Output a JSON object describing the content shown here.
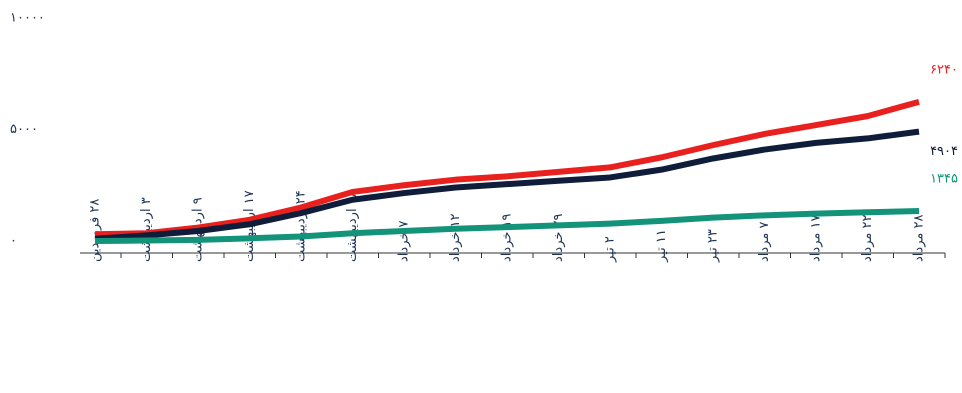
{
  "chart_data": {
    "type": "line",
    "categories": [
      "۲۸ فروردین",
      "۳ اردیبهشت",
      "۹ اردیبهشت",
      "۱۷ اردیبهشت",
      "۲۴ اردیبهشت",
      "۲۸ اردیبهشت",
      "۷ خرداد",
      "۱۲ خرداد",
      "۱۹ خرداد",
      "۲۹ خرداد",
      "۲ تیر",
      "۱۱ تیر",
      "۲۳ تیر",
      "۷ مرداد",
      "۱۷ مرداد",
      "۲۲ مرداد",
      "۲۸ مرداد"
    ],
    "series": [
      {
        "color": "#e8211f",
        "values": [
          300,
          350,
          600,
          950,
          1500,
          2200,
          2500,
          2750,
          2900,
          3100,
          3300,
          3750,
          4300,
          4800,
          5200,
          5600,
          6240
        ],
        "value_labels": [
          null,
          null,
          null,
          null,
          null,
          null,
          null,
          null,
          null,
          null,
          null,
          null,
          null,
          null,
          null,
          null,
          "۶۲۴۰"
        ]
      },
      {
        "color": "#0f1d3a",
        "values": [
          100,
          250,
          450,
          750,
          1250,
          1850,
          2150,
          2400,
          2550,
          2700,
          2850,
          3200,
          3700,
          4100,
          4400,
          4600,
          4904
        ],
        "value_labels": [
          null,
          null,
          null,
          null,
          null,
          null,
          null,
          null,
          null,
          null,
          null,
          null,
          null,
          null,
          null,
          null,
          "۴۹۰۴"
        ]
      },
      {
        "color": "#13947a",
        "values": [
          0,
          20,
          50,
          120,
          200,
          350,
          450,
          550,
          620,
          700,
          780,
          900,
          1050,
          1150,
          1230,
          1290,
          1345
        ],
        "value_labels": [
          null,
          null,
          null,
          null,
          null,
          null,
          null,
          null,
          null,
          null,
          null,
          null,
          null,
          null,
          null,
          null,
          "۱۳۴۵"
        ]
      }
    ],
    "ylim": [
      0,
      10000
    ],
    "yticks": [
      {
        "value": 0,
        "label": "۰"
      },
      {
        "value": 5000,
        "label": "۵۰۰۰"
      },
      {
        "value": 10000,
        "label": "۱۰۰۰۰"
      }
    ],
    "grid": false
  }
}
